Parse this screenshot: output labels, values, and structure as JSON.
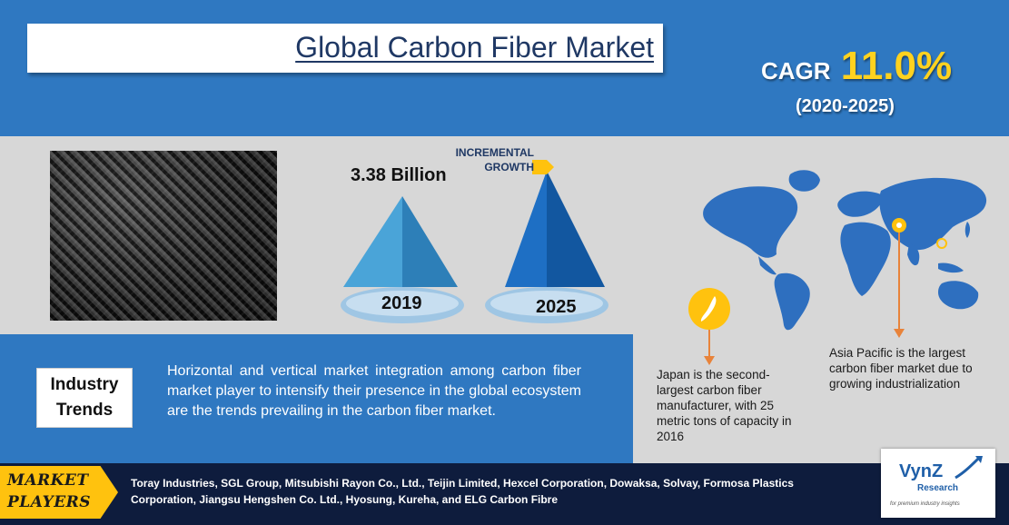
{
  "header": {
    "title": "Global Carbon Fiber Market",
    "cagr_label": "CAGR",
    "cagr_value": "11.0%",
    "cagr_period": "(2020-2025)"
  },
  "pyramids": {
    "value_2019": "3.38 Billion",
    "label_2019": "2019",
    "label_2025": "2025",
    "incremental_line1": "INCREMENTAL",
    "incremental_line2": "GROWTH"
  },
  "map_notes": {
    "japan": "Japan is the second-largest carbon fiber manufacturer, with 25 metric tons of capacity in 2016",
    "asia": "Asia Pacific is the largest carbon fiber market due to growing industrialization"
  },
  "trends": {
    "box_line1": "Industry",
    "box_line2": "Trends",
    "text": "Horizontal and vertical market integration among carbon fiber market player to intensify their presence in the global ecosystem are the trends prevailing in the carbon fiber market."
  },
  "players": {
    "tab_line1": "MARKET",
    "tab_line2": "PLAYERS",
    "list": "Toray Industries, SGL Group, Mitsubishi Rayon Co., Ltd., Teijin Limited, Hexcel Corporation, Dowaksa, Solvay, Formosa Plastics Corporation, Jiangsu Hengshen Co. Ltd., Hyosung, Kureha, and ELG Carbon Fibre"
  },
  "logo": {
    "name": "VynZ",
    "sub": "Research",
    "tagline": "for premium industry insights"
  },
  "colors": {
    "brand_blue": "#2f78c1",
    "accent_yellow": "#ffd21f",
    "navy": "#0e1c3d",
    "marker_orange": "#e8833a"
  }
}
